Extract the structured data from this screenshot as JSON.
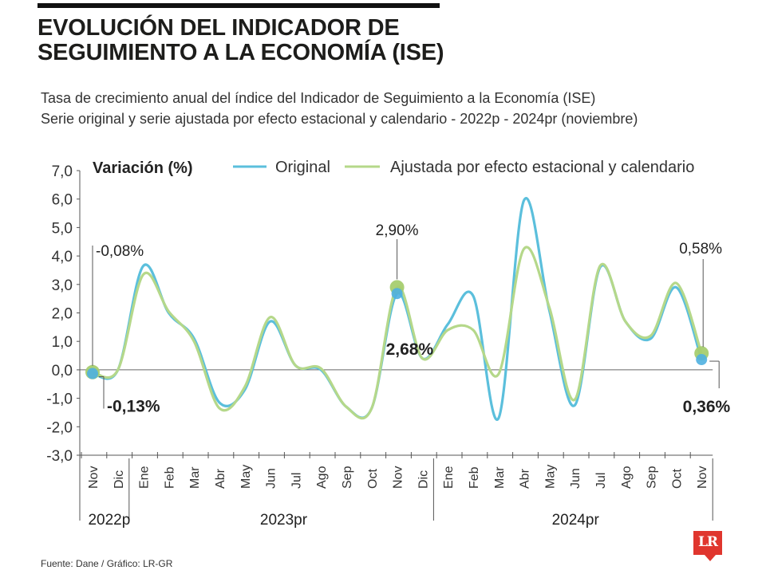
{
  "header": {
    "title_line1": "EVOLUCIÓN DEL INDICADOR DE",
    "title_line2": "SEGUIMIENTO A LA ECONOMÍA (ISE)",
    "subtitle_line1": "Tasa de crecimiento anual del índice del Indicador de Seguimiento a la Economía (ISE)",
    "subtitle_line2": "Serie original y serie ajustada por efecto estacional y calendario - 2022p - 2024pr (noviembre)"
  },
  "footer": {
    "source": "Fuente: Dane / Gráfico: LR-GR",
    "logo_text": "LR"
  },
  "colors": {
    "original": "#5bbfdc",
    "adjusted": "#b5d88a",
    "marker_adjusted": "#a6ce6f",
    "marker_original": "#4fb0e0",
    "logo": "#e0362e"
  },
  "chart_data": {
    "type": "line",
    "ylabel": "Variación (%)",
    "ylim": [
      -3,
      7
    ],
    "y_ticks": [
      "7,0",
      "6,0",
      "5,0",
      "4,0",
      "3,0",
      "2,0",
      "1,0",
      "0,0",
      "-1,0",
      "-2,0",
      "-3,0"
    ],
    "categories": [
      "Nov",
      "Dic",
      "Ene",
      "Feb",
      "Mar",
      "Abr",
      "May",
      "Jun",
      "Jul",
      "Ago",
      "Sep",
      "Oct",
      "Nov",
      "Dic",
      "Ene",
      "Feb",
      "Mar",
      "Abr",
      "May",
      "Jun",
      "Jul",
      "Ago",
      "Sep",
      "Oct",
      "Nov"
    ],
    "year_groups": [
      "2022p",
      "2023pr",
      "2024pr"
    ],
    "legend_position": "top",
    "series": [
      {
        "name": "Original",
        "values": [
          -0.13,
          0.0,
          3.65,
          2.0,
          1.1,
          -1.15,
          -0.7,
          1.7,
          0.15,
          0.0,
          -1.3,
          -1.35,
          2.68,
          0.4,
          1.6,
          2.6,
          -1.7,
          5.95,
          2.1,
          -1.25,
          3.6,
          1.7,
          1.1,
          2.9,
          0.36
        ]
      },
      {
        "name": "Ajustada por efecto estacional y calendario",
        "values": [
          -0.08,
          0.0,
          3.35,
          2.05,
          1.0,
          -1.35,
          -0.6,
          1.85,
          0.15,
          0.05,
          -1.3,
          -1.35,
          2.9,
          0.4,
          1.4,
          1.4,
          -0.15,
          4.25,
          2.2,
          -1.05,
          3.65,
          1.7,
          1.2,
          3.05,
          0.58
        ]
      }
    ],
    "annotations": [
      {
        "label": "-0,08%",
        "series": 1,
        "index": 0
      },
      {
        "label": "-0,13%",
        "series": 0,
        "index": 0
      },
      {
        "label": "2,90%",
        "series": 1,
        "index": 12
      },
      {
        "label": "2,68%",
        "series": 0,
        "index": 12
      },
      {
        "label": "0,58%",
        "series": 1,
        "index": 24
      },
      {
        "label": "0,36%",
        "series": 0,
        "index": 24
      }
    ]
  }
}
